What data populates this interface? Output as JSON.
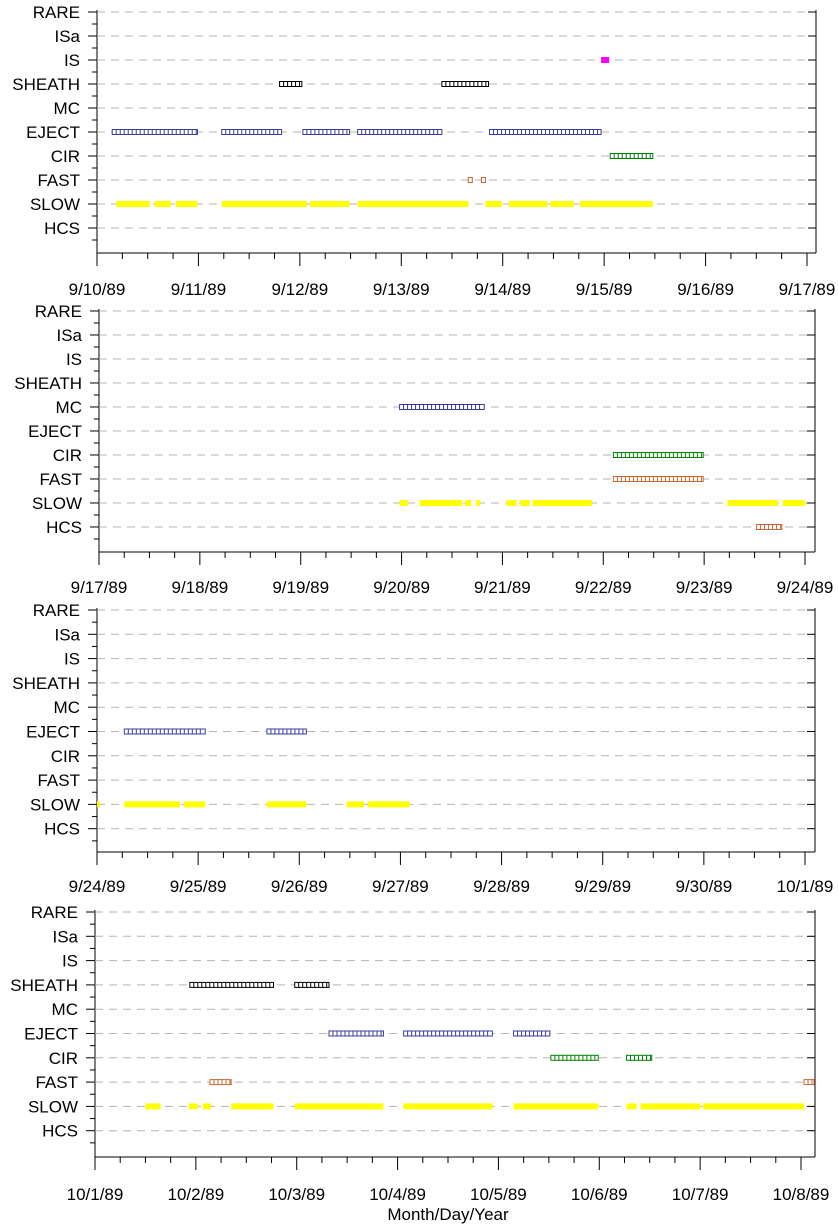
{
  "chart_data": [
    {
      "type": "timeline",
      "categories": [
        "RARE",
        "ISa",
        "IS",
        "SHEATH",
        "MC",
        "EJECT",
        "CIR",
        "FAST",
        "SLOW",
        "HCS"
      ],
      "x_start": "9/10/89",
      "x_end": "9/17/89",
      "tick_labels": [
        "9/10/89",
        "9/11/89",
        "9/12/89",
        "9/13/89",
        "9/14/89",
        "9/15/89",
        "9/16/89",
        "9/17/89"
      ],
      "grid": "horizontal dashed",
      "intervals": [
        {
          "category": "IS",
          "start": 4.97,
          "end": 5.05,
          "color": "#ff00ff",
          "style": "solid"
        },
        {
          "category": "SHEATH",
          "start": 1.8,
          "end": 2.02,
          "color": "#000000",
          "style": "open"
        },
        {
          "category": "SHEATH",
          "start": 3.4,
          "end": 3.86,
          "color": "#000000",
          "style": "open"
        },
        {
          "category": "EJECT",
          "start": 0.15,
          "end": 0.99,
          "color": "#3a3aa0",
          "style": "open"
        },
        {
          "category": "EJECT",
          "start": 1.23,
          "end": 1.82,
          "color": "#3a3aa0",
          "style": "open"
        },
        {
          "category": "EJECT",
          "start": 2.03,
          "end": 2.49,
          "color": "#3a3aa0",
          "style": "open"
        },
        {
          "category": "EJECT",
          "start": 2.57,
          "end": 3.4,
          "color": "#3a3aa0",
          "style": "open"
        },
        {
          "category": "EJECT",
          "start": 3.87,
          "end": 4.97,
          "color": "#3a3aa0",
          "style": "open"
        },
        {
          "category": "CIR",
          "start": 5.06,
          "end": 5.48,
          "color": "#008000",
          "style": "open"
        },
        {
          "category": "FAST",
          "start": 3.66,
          "end": 3.7,
          "color": "#c86432",
          "style": "open"
        },
        {
          "category": "FAST",
          "start": 3.79,
          "end": 3.83,
          "color": "#c86432",
          "style": "open"
        },
        {
          "category": "SLOW",
          "start": 0.19,
          "end": 0.52,
          "color": "#ffff00",
          "style": "solid"
        },
        {
          "category": "SLOW",
          "start": 0.57,
          "end": 0.73,
          "color": "#ffff00",
          "style": "solid"
        },
        {
          "category": "SLOW",
          "start": 0.78,
          "end": 0.99,
          "color": "#ffff00",
          "style": "solid"
        },
        {
          "category": "SLOW",
          "start": 1.23,
          "end": 2.07,
          "color": "#ffff00",
          "style": "solid"
        },
        {
          "category": "SLOW",
          "start": 2.1,
          "end": 2.49,
          "color": "#ffff00",
          "style": "solid"
        },
        {
          "category": "SLOW",
          "start": 2.57,
          "end": 3.66,
          "color": "#ffff00",
          "style": "solid"
        },
        {
          "category": "SLOW",
          "start": 3.83,
          "end": 3.99,
          "color": "#ffff00",
          "style": "solid"
        },
        {
          "category": "SLOW",
          "start": 4.06,
          "end": 4.44,
          "color": "#ffff00",
          "style": "solid"
        },
        {
          "category": "SLOW",
          "start": 4.47,
          "end": 4.7,
          "color": "#ffff00",
          "style": "solid"
        },
        {
          "category": "SLOW",
          "start": 4.76,
          "end": 5.48,
          "color": "#ffff00",
          "style": "solid"
        }
      ]
    },
    {
      "type": "timeline",
      "categories": [
        "RARE",
        "ISa",
        "IS",
        "SHEATH",
        "MC",
        "EJECT",
        "CIR",
        "FAST",
        "SLOW",
        "HCS"
      ],
      "x_start": "9/17/89",
      "x_end": "9/24/89",
      "tick_labels": [
        "9/17/89",
        "9/18/89",
        "9/19/89",
        "9/20/89",
        "9/21/89",
        "9/22/89",
        "9/23/89",
        "9/24/89"
      ],
      "grid": "horizontal dashed",
      "intervals": [
        {
          "category": "MC",
          "start": 2.98,
          "end": 3.82,
          "color": "#3a3aa0",
          "style": "open"
        },
        {
          "category": "CIR",
          "start": 5.1,
          "end": 5.99,
          "color": "#008000",
          "style": "open"
        },
        {
          "category": "FAST",
          "start": 5.1,
          "end": 5.99,
          "color": "#c86432",
          "style": "open"
        },
        {
          "category": "HCS",
          "start": 6.52,
          "end": 6.77,
          "color": "#c86432",
          "style": "open"
        },
        {
          "category": "SLOW",
          "start": 2.98,
          "end": 3.06,
          "color": "#ffff00",
          "style": "solid"
        },
        {
          "category": "SLOW",
          "start": 3.18,
          "end": 3.6,
          "color": "#ffff00",
          "style": "solid"
        },
        {
          "category": "SLOW",
          "start": 3.63,
          "end": 3.69,
          "color": "#ffff00",
          "style": "solid"
        },
        {
          "category": "SLOW",
          "start": 3.74,
          "end": 3.78,
          "color": "#ffff00",
          "style": "solid"
        },
        {
          "category": "SLOW",
          "start": 4.04,
          "end": 4.14,
          "color": "#ffff00",
          "style": "solid"
        },
        {
          "category": "SLOW",
          "start": 4.18,
          "end": 4.27,
          "color": "#ffff00",
          "style": "solid"
        },
        {
          "category": "SLOW",
          "start": 4.3,
          "end": 4.89,
          "color": "#ffff00",
          "style": "solid"
        },
        {
          "category": "SLOW",
          "start": 6.23,
          "end": 6.73,
          "color": "#ffff00",
          "style": "solid"
        },
        {
          "category": "SLOW",
          "start": 6.78,
          "end": 7.0,
          "color": "#ffff00",
          "style": "solid"
        }
      ]
    },
    {
      "type": "timeline",
      "categories": [
        "RARE",
        "ISa",
        "IS",
        "SHEATH",
        "MC",
        "EJECT",
        "CIR",
        "FAST",
        "SLOW",
        "HCS"
      ],
      "x_start": "9/24/89",
      "x_end": "10/1/89",
      "tick_labels": [
        "9/24/89",
        "9/25/89",
        "9/26/89",
        "9/27/89",
        "9/28/89",
        "9/29/89",
        "9/30/89",
        "10/1/89"
      ],
      "grid": "horizontal dashed",
      "intervals": [
        {
          "category": "EJECT",
          "start": 0.27,
          "end": 1.07,
          "color": "#3a3aa0",
          "style": "open"
        },
        {
          "category": "EJECT",
          "start": 1.68,
          "end": 2.07,
          "color": "#3a3aa0",
          "style": "open"
        },
        {
          "category": "SLOW",
          "start": 0.0,
          "end": 0.03,
          "color": "#ffff00",
          "style": "solid"
        },
        {
          "category": "SLOW",
          "start": 0.27,
          "end": 0.82,
          "color": "#ffff00",
          "style": "solid"
        },
        {
          "category": "SLOW",
          "start": 0.86,
          "end": 1.07,
          "color": "#ffff00",
          "style": "solid"
        },
        {
          "category": "SLOW",
          "start": 1.68,
          "end": 2.07,
          "color": "#ffff00",
          "style": "solid"
        },
        {
          "category": "SLOW",
          "start": 2.47,
          "end": 2.64,
          "color": "#ffff00",
          "style": "solid"
        },
        {
          "category": "SLOW",
          "start": 2.68,
          "end": 3.09,
          "color": "#ffff00",
          "style": "solid"
        }
      ]
    },
    {
      "type": "timeline",
      "categories": [
        "RARE",
        "ISa",
        "IS",
        "SHEATH",
        "MC",
        "EJECT",
        "CIR",
        "FAST",
        "SLOW",
        "HCS"
      ],
      "x_start": "10/1/89",
      "x_end": "10/8/89",
      "tick_labels": [
        "10/1/89",
        "10/2/89",
        "10/3/89",
        "10/4/89",
        "10/5/89",
        "10/6/89",
        "10/7/89",
        "10/8/89"
      ],
      "xlabel": "Month/Day/Year",
      "grid": "horizontal dashed",
      "intervals": [
        {
          "category": "SHEATH",
          "start": 0.94,
          "end": 1.77,
          "color": "#000000",
          "style": "open"
        },
        {
          "category": "SHEATH",
          "start": 1.98,
          "end": 2.32,
          "color": "#000000",
          "style": "open"
        },
        {
          "category": "EJECT",
          "start": 2.32,
          "end": 2.86,
          "color": "#3a3aa0",
          "style": "open"
        },
        {
          "category": "EJECT",
          "start": 3.06,
          "end": 3.94,
          "color": "#3a3aa0",
          "style": "open"
        },
        {
          "category": "EJECT",
          "start": 4.15,
          "end": 4.51,
          "color": "#3a3aa0",
          "style": "open"
        },
        {
          "category": "CIR",
          "start": 4.52,
          "end": 4.99,
          "color": "#008000",
          "style": "open"
        },
        {
          "category": "CIR",
          "start": 5.27,
          "end": 5.52,
          "color": "#008000",
          "style": "open"
        },
        {
          "category": "FAST",
          "start": 1.14,
          "end": 1.35,
          "color": "#c86432",
          "style": "open"
        },
        {
          "category": "FAST",
          "start": 7.03,
          "end": 7.13,
          "color": "#c86432",
          "style": "open"
        },
        {
          "category": "SLOW",
          "start": 0.5,
          "end": 0.65,
          "color": "#ffff00",
          "style": "solid"
        },
        {
          "category": "SLOW",
          "start": 0.93,
          "end": 1.02,
          "color": "#ffff00",
          "style": "solid"
        },
        {
          "category": "SLOW",
          "start": 1.07,
          "end": 1.15,
          "color": "#ffff00",
          "style": "solid"
        },
        {
          "category": "SLOW",
          "start": 1.35,
          "end": 1.77,
          "color": "#ffff00",
          "style": "solid"
        },
        {
          "category": "SLOW",
          "start": 1.98,
          "end": 2.86,
          "color": "#ffff00",
          "style": "solid"
        },
        {
          "category": "SLOW",
          "start": 3.06,
          "end": 3.94,
          "color": "#ffff00",
          "style": "solid"
        },
        {
          "category": "SLOW",
          "start": 4.15,
          "end": 4.99,
          "color": "#ffff00",
          "style": "solid"
        },
        {
          "category": "SLOW",
          "start": 5.27,
          "end": 5.37,
          "color": "#ffff00",
          "style": "solid"
        },
        {
          "category": "SLOW",
          "start": 5.41,
          "end": 6.0,
          "color": "#ffff00",
          "style": "solid"
        },
        {
          "category": "SLOW",
          "start": 6.03,
          "end": 7.03,
          "color": "#ffff00",
          "style": "solid"
        }
      ]
    }
  ]
}
